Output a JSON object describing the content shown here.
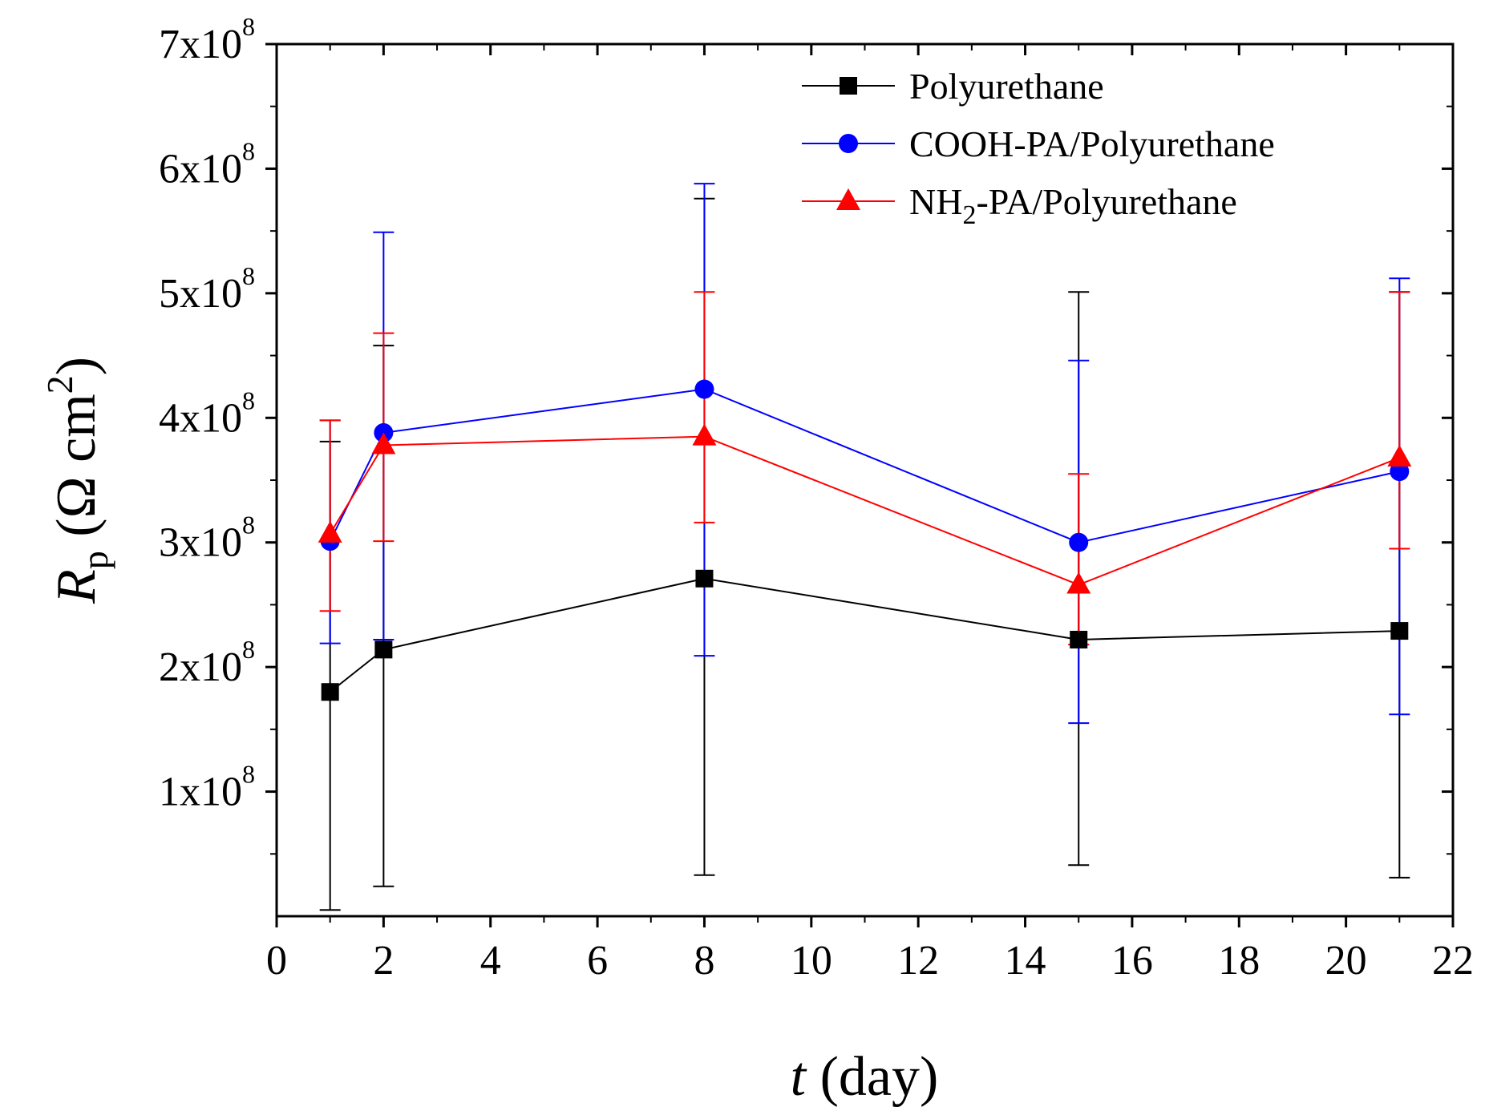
{
  "chart_data": {
    "type": "line",
    "title": "",
    "xlabel": {
      "var": "t",
      "unit": " (day)"
    },
    "ylabel": {
      "var": "R",
      "sub": "p",
      "open": " (Ω cm",
      "sup": "2",
      "close": ")"
    },
    "xlim": [
      0,
      22
    ],
    "ylim": [
      0,
      700000000
    ],
    "x_ticks": [
      {
        "value": 0,
        "label": "0"
      },
      {
        "value": 2,
        "label": "2"
      },
      {
        "value": 4,
        "label": "4"
      },
      {
        "value": 6,
        "label": "6"
      },
      {
        "value": 8,
        "label": "8"
      },
      {
        "value": 10,
        "label": "10"
      },
      {
        "value": 12,
        "label": "12"
      },
      {
        "value": 14,
        "label": "14"
      },
      {
        "value": 16,
        "label": "16"
      },
      {
        "value": 18,
        "label": "18"
      },
      {
        "value": 20,
        "label": "20"
      },
      {
        "value": 22,
        "label": "22"
      }
    ],
    "y_ticks": [
      {
        "value": 100000000,
        "mantissa": "1x10",
        "exp": "8"
      },
      {
        "value": 200000000,
        "mantissa": "2x10",
        "exp": "8"
      },
      {
        "value": 300000000,
        "mantissa": "3x10",
        "exp": "8"
      },
      {
        "value": 400000000,
        "mantissa": "4x10",
        "exp": "8"
      },
      {
        "value": 500000000,
        "mantissa": "5x10",
        "exp": "8"
      },
      {
        "value": 600000000,
        "mantissa": "6x10",
        "exp": "8"
      },
      {
        "value": 700000000,
        "mantissa": "7x10",
        "exp": "8"
      }
    ],
    "x": [
      1,
      2,
      8,
      15,
      21
    ],
    "legend_position": "top-right",
    "series": [
      {
        "name": "Polyurethane",
        "color": "#000000",
        "marker": "square",
        "values": [
          180000000,
          214000000,
          271000000,
          222000000,
          229000000
        ],
        "err_low": [
          5000000,
          24000000,
          33000000,
          41000000,
          31000000
        ],
        "err_high": [
          381000000,
          458000000,
          576000000,
          501000000,
          501000000
        ]
      },
      {
        "name": "COOH-PA/Polyurethane",
        "color": "#0000ff",
        "marker": "circle",
        "values": [
          301000000,
          388000000,
          423000000,
          300000000,
          357000000
        ],
        "err_low": [
          219000000,
          222000000,
          209000000,
          155000000,
          162000000
        ],
        "err_high": [
          398000000,
          549000000,
          588000000,
          446000000,
          512000000
        ]
      },
      {
        "name": "NH2-PA/Polyurethane",
        "legend_parts": [
          "NH",
          "2",
          "-PA/Polyurethane"
        ],
        "color": "#ff0000",
        "marker": "triangle",
        "values": [
          307000000,
          378000000,
          385000000,
          266000000,
          368000000
        ],
        "err_low": [
          245000000,
          301000000,
          316000000,
          218000000,
          295000000
        ],
        "err_high": [
          398000000,
          468000000,
          501000000,
          355000000,
          501000000
        ]
      }
    ]
  }
}
